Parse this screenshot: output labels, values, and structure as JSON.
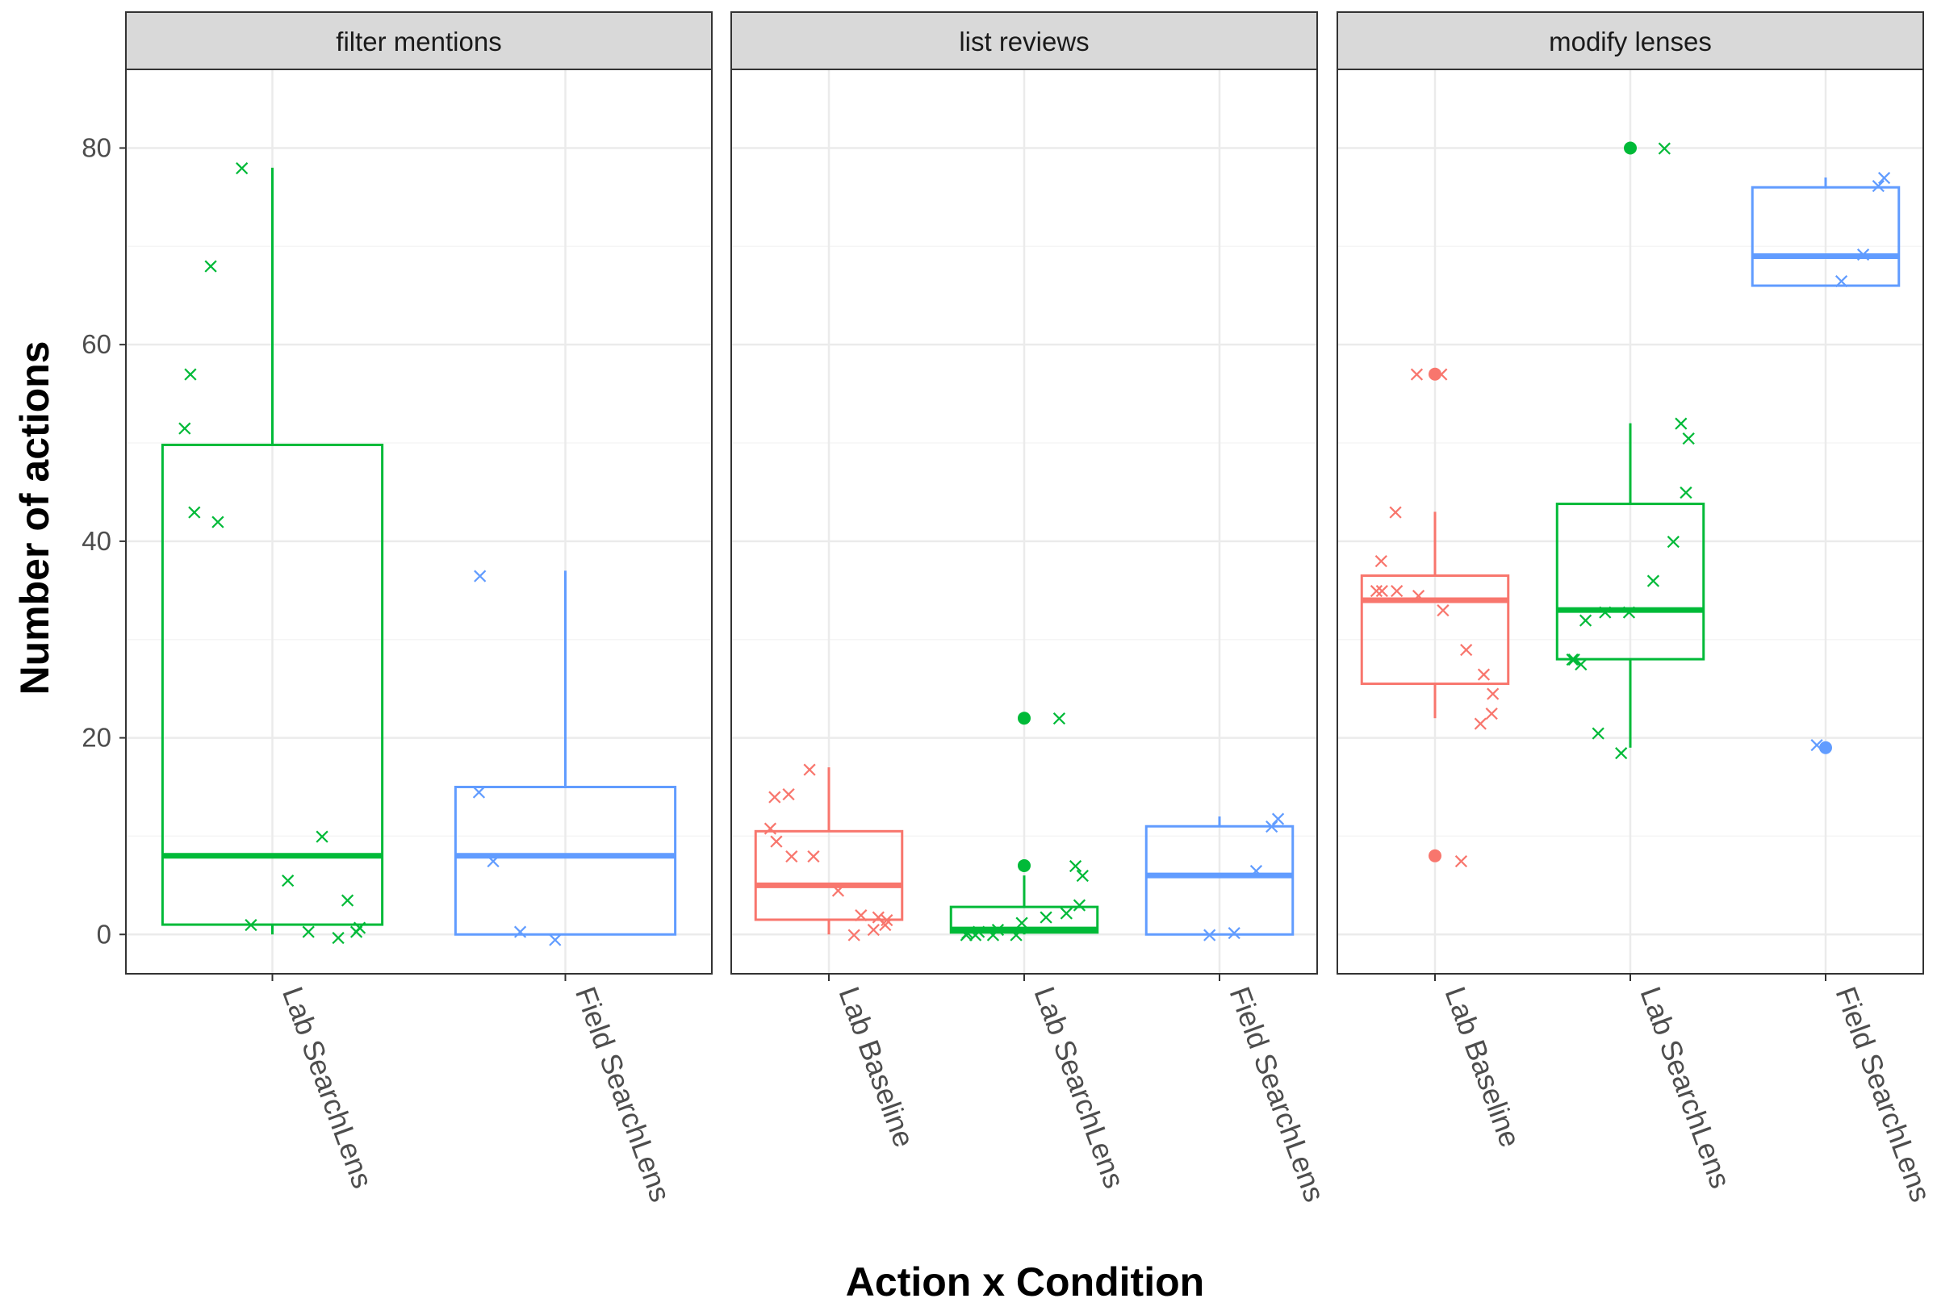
{
  "chart_data": {
    "type": "box",
    "xlabel": "Action x Condition",
    "ylabel": "Number of actions",
    "ylim": [
      -4,
      88
    ],
    "yticks": [
      0,
      20,
      40,
      60,
      80
    ],
    "grid": true,
    "legend": "none",
    "condition_colors": {
      "Lab Baseline": "#F8766D",
      "Lab SearchLens": "#00BA38",
      "Field SearchLens": "#619CFF"
    },
    "panels": [
      {
        "title": "filter mentions",
        "groups": [
          {
            "condition": "Lab SearchLens",
            "stats": {
              "lower_whisker": 0,
              "q1": 1,
              "median": 8,
              "q3": 49.8,
              "upper_whisker": 78
            },
            "outliers": [],
            "points": [
              0.3,
              -0.3,
              0.3,
              0.7,
              3.5,
              10,
              5.5,
              1,
              42,
              43,
              51.5,
              57,
              68,
              78
            ]
          },
          {
            "condition": "Field SearchLens",
            "stats": {
              "lower_whisker": 0,
              "q1": 0,
              "median": 8,
              "q3": 15,
              "upper_whisker": 37
            },
            "outliers": [],
            "points": [
              -0.5,
              0.3,
              7.5,
              14.5,
              36.5
            ]
          }
        ]
      },
      {
        "title": "list reviews",
        "groups": [
          {
            "condition": "Lab Baseline",
            "stats": {
              "lower_whisker": 0,
              "q1": 1.5,
              "median": 5,
              "q3": 10.5,
              "upper_whisker": 17
            },
            "outliers": [],
            "points": [
              0,
              0.5,
              1,
              1.5,
              1.8,
              2,
              4.5,
              8,
              8,
              9.5,
              10.8,
              14,
              14.3,
              16.8
            ]
          },
          {
            "condition": "Lab SearchLens",
            "stats": {
              "lower_whisker": 0,
              "q1": 0.2,
              "median": 0.5,
              "q3": 2.8,
              "upper_whisker": 6
            },
            "outliers": [
              7,
              22
            ],
            "points": [
              0,
              0,
              0,
              0,
              0.2,
              0.3,
              0.5,
              1.2,
              1.8,
              2.2,
              3,
              6,
              7,
              22
            ]
          },
          {
            "condition": "Field SearchLens",
            "stats": {
              "lower_whisker": 0,
              "q1": 0,
              "median": 6,
              "q3": 11,
              "upper_whisker": 12
            },
            "outliers": [],
            "points": [
              0,
              0.2,
              6.5,
              11,
              11.8
            ]
          }
        ]
      },
      {
        "title": "modify lenses",
        "groups": [
          {
            "condition": "Lab Baseline",
            "stats": {
              "lower_whisker": 22,
              "q1": 25.5,
              "median": 34,
              "q3": 36.5,
              "upper_whisker": 43
            },
            "outliers": [
              8,
              57
            ],
            "points": [
              7.5,
              21.5,
              22.5,
              24.5,
              26.5,
              29,
              33,
              34.5,
              35,
              35,
              35,
              38,
              43,
              57,
              57
            ]
          },
          {
            "condition": "Lab SearchLens",
            "stats": {
              "lower_whisker": 19,
              "q1": 28,
              "median": 33,
              "q3": 43.8,
              "upper_whisker": 52
            },
            "outliers": [
              80
            ],
            "points": [
              18.5,
              20.5,
              27.5,
              28,
              28,
              32,
              32.8,
              32.8,
              36,
              40,
              45,
              50.5,
              52,
              80
            ]
          },
          {
            "condition": "Field SearchLens",
            "stats": {
              "lower_whisker": 66,
              "q1": 66,
              "median": 69,
              "q3": 76,
              "upper_whisker": 77
            },
            "outliers": [
              19
            ],
            "points": [
              19.3,
              66.5,
              69.2,
              76.2,
              77
            ]
          }
        ]
      }
    ]
  }
}
